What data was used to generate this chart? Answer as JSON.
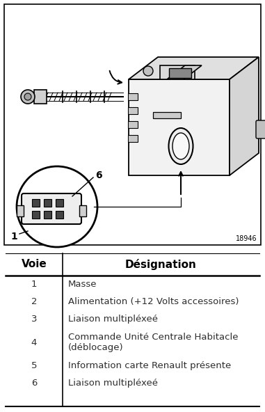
{
  "table_header_voie": "Voie",
  "table_header_designation": "Désignation",
  "table_rows": [
    [
      "1",
      "Masse"
    ],
    [
      "2",
      "Alimentation (+12 Volts accessoires)"
    ],
    [
      "3",
      "Liaison multipléxeé"
    ],
    [
      "4",
      "Commande Unité Centrale Habitacle\n(déblocage)"
    ],
    [
      "5",
      "Information carte Renault présente"
    ],
    [
      "6",
      "Liaison multipléxeé"
    ]
  ],
  "header_bold_color": "#000000",
  "row_text_color": "#2d2d2d",
  "bg_color": "#ffffff",
  "image_ref": "18946"
}
